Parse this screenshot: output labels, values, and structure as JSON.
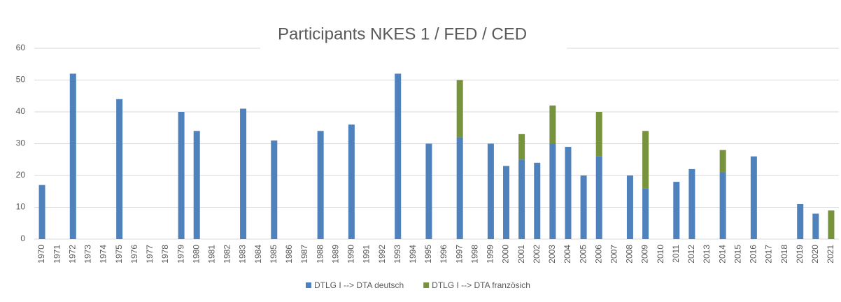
{
  "chart_data": {
    "type": "stacked_bar",
    "title": "Participants NKES 1 / FED / CED",
    "categories": [
      "1970",
      "1971",
      "1972",
      "1973",
      "1974",
      "1975",
      "1976",
      "1977",
      "1978",
      "1979",
      "1980",
      "1981",
      "1982",
      "1983",
      "1984",
      "1985",
      "1986",
      "1987",
      "1988",
      "1989",
      "1990",
      "1991",
      "1992",
      "1993",
      "1994",
      "1995",
      "1996",
      "1997",
      "1998",
      "1999",
      "2000",
      "2001",
      "2002",
      "2003",
      "2004",
      "2005",
      "2006",
      "2007",
      "2008",
      "2009",
      "2010",
      "2011",
      "2012",
      "2013",
      "2014",
      "2015",
      "2016",
      "2017",
      "2018",
      "2019",
      "2020",
      "2021"
    ],
    "series": [
      {
        "name": "DTLG I --> DTA deutsch",
        "color": "#4f81bd",
        "values": [
          17,
          0,
          52,
          0,
          0,
          44,
          0,
          0,
          0,
          40,
          34,
          0,
          0,
          41,
          0,
          31,
          0,
          0,
          34,
          0,
          36,
          0,
          0,
          52,
          0,
          30,
          0,
          32,
          0,
          30,
          23,
          25,
          24,
          30,
          29,
          20,
          26,
          0,
          20,
          16,
          0,
          18,
          22,
          0,
          21,
          0,
          26,
          0,
          0,
          11,
          8,
          0
        ]
      },
      {
        "name": "DTLG I --> DTA französich",
        "color": "#77933c",
        "values": [
          0,
          0,
          0,
          0,
          0,
          0,
          0,
          0,
          0,
          0,
          0,
          0,
          0,
          0,
          0,
          0,
          0,
          0,
          0,
          0,
          0,
          0,
          0,
          0,
          0,
          0,
          0,
          18,
          0,
          0,
          0,
          8,
          0,
          12,
          0,
          0,
          14,
          0,
          0,
          18,
          0,
          0,
          0,
          0,
          7,
          0,
          0,
          0,
          0,
          0,
          0,
          9
        ]
      }
    ],
    "ylim": [
      0,
      60
    ],
    "yticks": [
      0,
      10,
      20,
      30,
      40,
      50,
      60
    ],
    "grid": true,
    "legend": "bottom"
  }
}
